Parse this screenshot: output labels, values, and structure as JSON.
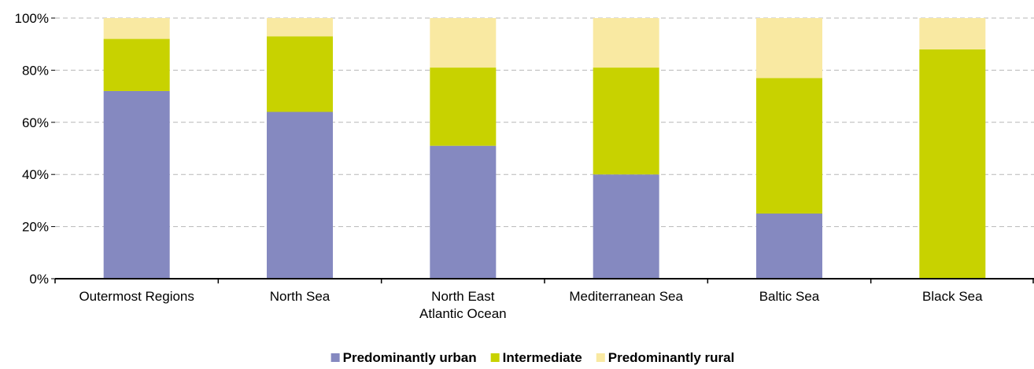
{
  "chart_data": {
    "type": "bar",
    "stacked": true,
    "categories": [
      [
        "Outermost Regions"
      ],
      [
        "North Sea"
      ],
      [
        "North East",
        "Atlantic Ocean"
      ],
      [
        "Mediterranean Sea"
      ],
      [
        "Baltic Sea"
      ],
      [
        "Black Sea"
      ]
    ],
    "series": [
      {
        "name": "Predominantly urban",
        "color": "#8589c0",
        "values": [
          72,
          64,
          51,
          40,
          25,
          0
        ]
      },
      {
        "name": "Intermediate",
        "color": "#c8d200",
        "values": [
          20,
          29,
          30,
          41,
          52,
          88
        ]
      },
      {
        "name": "Predominantly rural",
        "color": "#f9e9a2",
        "values": [
          8,
          7,
          19,
          19,
          23,
          12
        ]
      }
    ],
    "ylim": [
      0,
      100
    ],
    "yticks": [
      0,
      20,
      40,
      60,
      80,
      100
    ],
    "ytick_suffix": "%",
    "grid": true,
    "legend_position": "bottom-center",
    "title": "",
    "xlabel": "",
    "ylabel": ""
  }
}
